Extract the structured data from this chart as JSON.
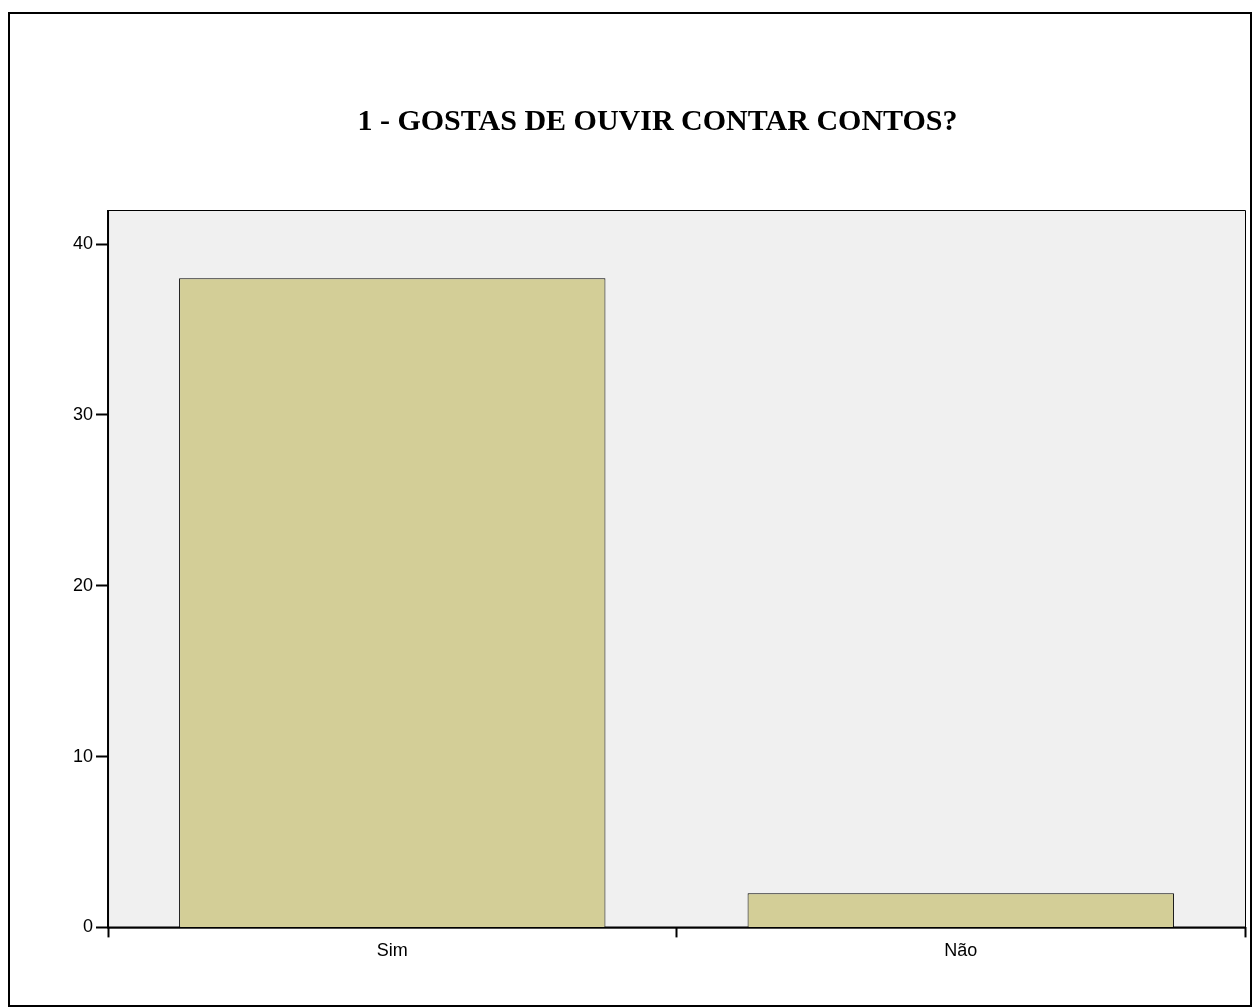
{
  "chart_data": {
    "type": "bar",
    "title": "1 - GOSTAS DE OUVIR CONTAR CONTOS?",
    "categories": [
      "Sim",
      "Não"
    ],
    "values": [
      38,
      2
    ],
    "color": "#d3ce97",
    "ylim": [
      0,
      42
    ],
    "yticks": [
      0,
      10,
      20,
      30,
      40
    ]
  }
}
